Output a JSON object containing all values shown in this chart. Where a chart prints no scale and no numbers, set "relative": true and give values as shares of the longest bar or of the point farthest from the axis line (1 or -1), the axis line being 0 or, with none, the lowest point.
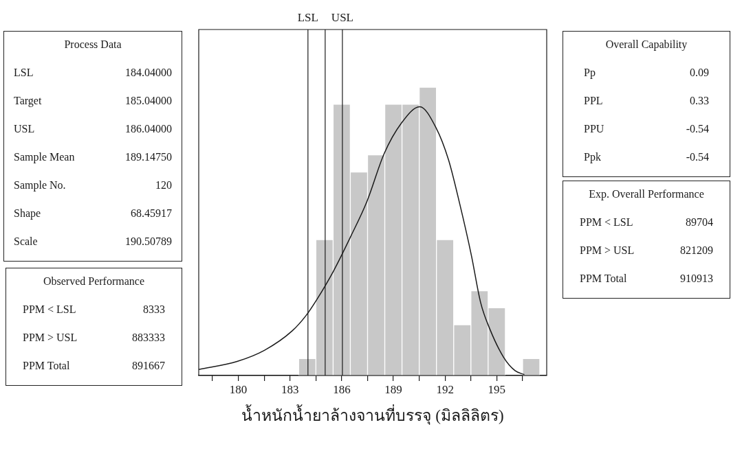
{
  "chart_data": [
    {
      "type": "histogram",
      "xlabel": "น้ำหนักน้ำยาล้างจานที่บรรจุ (มิลลิลิตร)",
      "relative": true,
      "xlim": [
        177.7,
        197.9
      ],
      "xticks": [
        {
          "value": 178.5,
          "label": null
        },
        180,
        {
          "value": 181.5,
          "label": null
        },
        183,
        {
          "value": 184.5,
          "label": null
        },
        186,
        {
          "value": 187.5,
          "label": null
        },
        189,
        {
          "value": 190.5,
          "label": null
        },
        192,
        {
          "value": 193.5,
          "label": null
        },
        195,
        {
          "value": 196.5,
          "label": null
        }
      ],
      "grid": false,
      "legend": false,
      "series": [
        {
          "type": "histogram",
          "color": "#c8c8c8",
          "bins": [
            183.5,
            184.5,
            185.5,
            186.5,
            187.5,
            188.5,
            189.5,
            190.5,
            191.5,
            192.5,
            193.5,
            194.5,
            195.5,
            196.5,
            197.5
          ],
          "values": [
            0.059,
            0.471,
            0.941,
            0.706,
            0.765,
            0.941,
            0.941,
            1,
            0.471,
            0.176,
            0.294,
            0.235,
            0,
            0.059
          ]
        },
        {
          "type": "line",
          "color": "#1a1a1a",
          "marker": "none",
          "x": [
            177.7,
            179.93,
            181.53,
            183.13,
            183.93,
            184.53,
            185.53,
            186.53,
            187.46,
            188.46,
            189.46,
            190.53,
            191.46,
            192.2,
            192.86,
            193.53,
            194.06,
            194.6,
            195.4,
            196.06,
            196.6
          ],
          "values": [
            0.021,
            0.049,
            0.088,
            0.155,
            0.208,
            0.261,
            0.363,
            0.483,
            0.603,
            0.769,
            0.875,
            0.932,
            0.861,
            0.748,
            0.593,
            0.416,
            0.254,
            0.161,
            0.063,
            0.017,
            0.003
          ]
        }
      ],
      "ref_lines": [
        {
          "axis": "x",
          "value": 184.04,
          "label": "LSL",
          "color": "#1a1a1a"
        },
        {
          "axis": "x",
          "value": 185.04,
          "color": "#1a1a1a"
        },
        {
          "axis": "x",
          "value": 186.04,
          "label": "USL",
          "color": "#1a1a1a"
        }
      ]
    },
    {
      "type": "other",
      "title": "Process Data",
      "categories": [
        "LSL",
        "Target",
        "USL",
        "Sample Mean",
        "Sample No.",
        "Shape",
        "Scale"
      ],
      "value_labels": [
        "184.04000",
        "185.04000",
        "186.04000",
        "189.14750",
        "120",
        "68.45917",
        "190.50789"
      ]
    },
    {
      "type": "other",
      "title": "Observed Performance",
      "categories": [
        "PPM < LSL",
        "PPM > USL",
        "PPM Total"
      ],
      "value_labels": [
        "8333",
        "883333",
        "891667"
      ]
    },
    {
      "type": "other",
      "title": "Overall Capability",
      "categories": [
        "Pp",
        "PPL",
        "PPU",
        "Ppk"
      ],
      "value_labels": [
        "0.09",
        "0.33",
        "-0.54",
        "-0.54"
      ]
    },
    {
      "type": "other",
      "title": "Exp. Overall Performance",
      "categories": [
        "PPM < LSL",
        "PPM > USL",
        "PPM Total"
      ],
      "value_labels": [
        "89704",
        "821209",
        "910913"
      ]
    }
  ]
}
